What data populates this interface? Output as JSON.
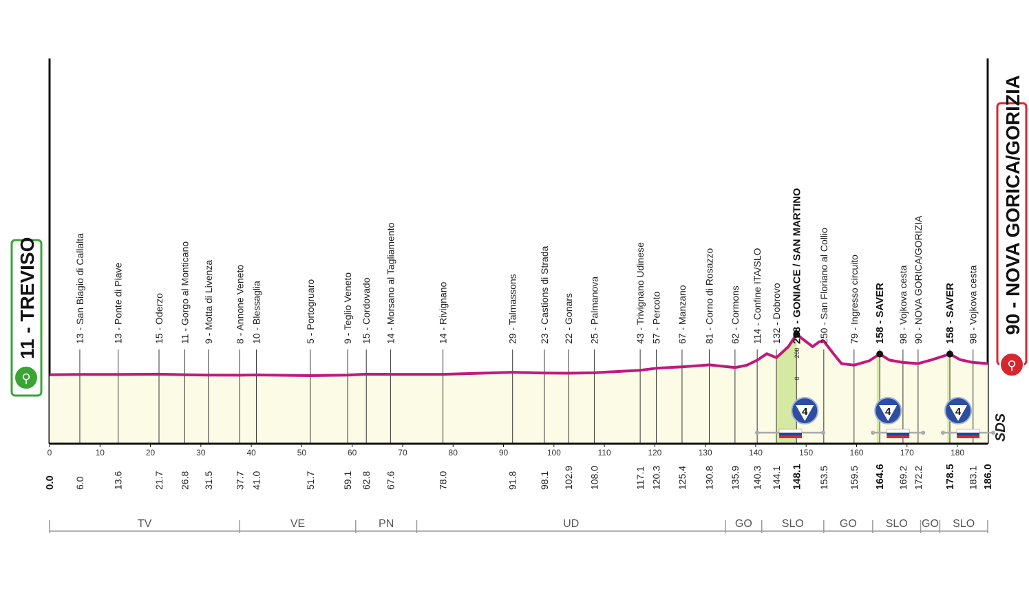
{
  "chart_data": {
    "type": "area",
    "title": "",
    "xlabel": "",
    "ylabel": "",
    "xlim": [
      0,
      186
    ],
    "x_ticks": [
      "0",
      "10",
      "20",
      "30",
      "40",
      "50",
      "60",
      "70",
      "80",
      "90",
      "100",
      "110",
      "120",
      "130",
      "140",
      "150",
      "160",
      "170",
      "180"
    ],
    "start": {
      "label": "11 - TREVISO",
      "km": 0.0
    },
    "finish": {
      "label": "90 - NOVA GORICA/GORIZIA",
      "km": 186.0
    },
    "profile": [
      {
        "km": 0,
        "alt": 11
      },
      {
        "km": 6,
        "alt": 13
      },
      {
        "km": 13.6,
        "alt": 13
      },
      {
        "km": 21.7,
        "alt": 15
      },
      {
        "km": 26.8,
        "alt": 11
      },
      {
        "km": 31.5,
        "alt": 9
      },
      {
        "km": 37.7,
        "alt": 8
      },
      {
        "km": 41,
        "alt": 10
      },
      {
        "km": 51.7,
        "alt": 5
      },
      {
        "km": 59.1,
        "alt": 9
      },
      {
        "km": 62.8,
        "alt": 15
      },
      {
        "km": 67.6,
        "alt": 14
      },
      {
        "km": 78,
        "alt": 14
      },
      {
        "km": 91.8,
        "alt": 29
      },
      {
        "km": 98.1,
        "alt": 23
      },
      {
        "km": 102.9,
        "alt": 22
      },
      {
        "km": 108,
        "alt": 25
      },
      {
        "km": 117.1,
        "alt": 43
      },
      {
        "km": 120.3,
        "alt": 57
      },
      {
        "km": 125.4,
        "alt": 67
      },
      {
        "km": 130.8,
        "alt": 81
      },
      {
        "km": 135.9,
        "alt": 62
      },
      {
        "km": 138.2,
        "alt": 78
      },
      {
        "km": 140.3,
        "alt": 114
      },
      {
        "km": 142.2,
        "alt": 160
      },
      {
        "km": 144.1,
        "alt": 132
      },
      {
        "km": 146.5,
        "alt": 210
      },
      {
        "km": 148.1,
        "alt": 298
      },
      {
        "km": 150.2,
        "alt": 240
      },
      {
        "km": 151.3,
        "alt": 210
      },
      {
        "km": 152.6,
        "alt": 245
      },
      {
        "km": 153.5,
        "alt": 250
      },
      {
        "km": 155.2,
        "alt": 170
      },
      {
        "km": 157,
        "alt": 90
      },
      {
        "km": 159.5,
        "alt": 79
      },
      {
        "km": 162.5,
        "alt": 110
      },
      {
        "km": 164.6,
        "alt": 158
      },
      {
        "km": 166.5,
        "alt": 115
      },
      {
        "km": 169.2,
        "alt": 98
      },
      {
        "km": 172.2,
        "alt": 90
      },
      {
        "km": 175,
        "alt": 118
      },
      {
        "km": 178.5,
        "alt": 158
      },
      {
        "km": 180.5,
        "alt": 118
      },
      {
        "km": 183.1,
        "alt": 98
      },
      {
        "km": 186,
        "alt": 90
      }
    ],
    "points": [
      {
        "km": "0.0",
        "x": 0,
        "label": "",
        "bold": true
      },
      {
        "km": "6.0",
        "x": 6.0,
        "label": "13 - San Biagio di Callalta"
      },
      {
        "km": "13.6",
        "x": 13.6,
        "label": "13 - Ponte di Piave"
      },
      {
        "km": "21.7",
        "x": 21.7,
        "label": "15 - Oderzo"
      },
      {
        "km": "26.8",
        "x": 26.8,
        "label": "11 - Gorgo al Monticano"
      },
      {
        "km": "31.5",
        "x": 31.5,
        "label": "9 - Motta di Livenza"
      },
      {
        "km": "37.7",
        "x": 37.7,
        "label": "8 - Annone Veneto"
      },
      {
        "km": "41.0",
        "x": 41.0,
        "label": "10 - Blessaglia"
      },
      {
        "km": "51.7",
        "x": 51.7,
        "label": "5 - Portogruaro"
      },
      {
        "km": "59.1",
        "x": 59.1,
        "label": "9 - Teglio Veneto"
      },
      {
        "km": "62.8",
        "x": 62.8,
        "label": "15 - Cordovado"
      },
      {
        "km": "67.6",
        "x": 67.6,
        "label": "14 - Morsano al Tagliamento"
      },
      {
        "km": "78.0",
        "x": 78.0,
        "label": "14 - Rivignano"
      },
      {
        "km": "91.8",
        "x": 91.8,
        "label": "29 - Talmassons"
      },
      {
        "km": "98.1",
        "x": 98.1,
        "label": "23 - Castions di Strada"
      },
      {
        "km": "102.9",
        "x": 102.9,
        "label": "22 - Gonars"
      },
      {
        "km": "108.0",
        "x": 108.0,
        "label": "25 - Palmanova"
      },
      {
        "km": "117.1",
        "x": 117.1,
        "label": "43 - Trivignano Udinese"
      },
      {
        "km": "120.3",
        "x": 120.3,
        "label": "57 - Percoto"
      },
      {
        "km": "125.4",
        "x": 125.4,
        "label": "67 - Manzano"
      },
      {
        "km": "130.8",
        "x": 130.8,
        "label": "81 - Corno di Rosazzo"
      },
      {
        "km": "135.9",
        "x": 135.9,
        "label": "62 - Cormons"
      },
      {
        "km": "140.3",
        "x": 140.3,
        "label": "114 - Confine ITA/SLO"
      },
      {
        "km": "144.1",
        "x": 144.1,
        "label": "132 - Dobrovo"
      },
      {
        "km": "148.1",
        "x": 148.1,
        "label": "298 - GONIACE / SAN MARTINO",
        "bold": true
      },
      {
        "km": "153.5",
        "x": 153.5,
        "label": "250 - San Floriano al Collio"
      },
      {
        "km": "159.5",
        "x": 159.5,
        "label": "79 - Ingresso circuito"
      },
      {
        "km": "164.6",
        "x": 164.6,
        "label": "158 - SAVER",
        "bold": true
      },
      {
        "km": "169.2",
        "x": 169.2,
        "label": "98 - Vojkova cesta"
      },
      {
        "km": "172.2",
        "x": 172.2,
        "label": "90 - NOVA GORICA/GORIZIA"
      },
      {
        "km": "178.5",
        "x": 178.5,
        "label": "158 - SAVER",
        "bold": true
      },
      {
        "km": "183.1",
        "x": 183.1,
        "label": "98 - Vojkova cesta"
      },
      {
        "km": "186.0",
        "x": 186.0,
        "label": "",
        "bold": true
      }
    ],
    "climbs": [
      {
        "km": 148.1,
        "category": "4"
      },
      {
        "km": 164.6,
        "category": "4"
      },
      {
        "km": 178.5,
        "category": "4"
      }
    ],
    "sprints": [
      148.1,
      164.6,
      178.5
    ],
    "regions": [
      {
        "name": "TV",
        "from": 0,
        "to": 37.7
      },
      {
        "name": "VE",
        "from": 37.7,
        "to": 60.7
      },
      {
        "name": "PN",
        "from": 60.7,
        "to": 72.8
      },
      {
        "name": "UD",
        "from": 72.8,
        "to": 134
      },
      {
        "name": "GO",
        "from": 134,
        "to": 141.2
      },
      {
        "name": "SLO",
        "from": 141.2,
        "to": 153.5
      },
      {
        "name": "GO",
        "from": 153.5,
        "to": 163.2
      },
      {
        "name": "SLO",
        "from": 163.2,
        "to": 172.7
      },
      {
        "name": "GO",
        "from": 172.7,
        "to": 176.5
      },
      {
        "name": "SLO",
        "from": 176.5,
        "to": 186
      }
    ],
    "alt_markers": [
      "200",
      "0"
    ],
    "sponsor": "SDS"
  }
}
